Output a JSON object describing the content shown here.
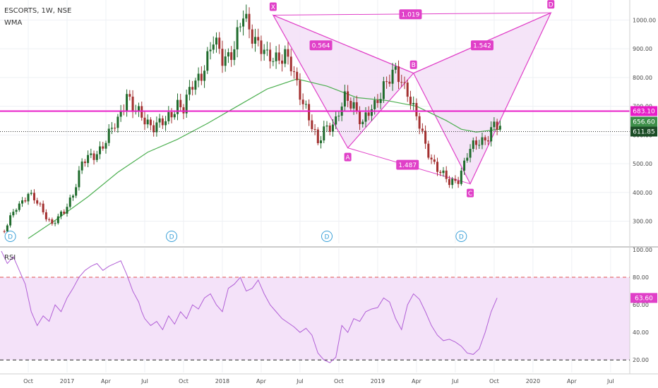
{
  "header": {
    "symbol_line": "ESCORTS, 1W, NSE",
    "indicator": "WMA"
  },
  "colors": {
    "bull": "#1f6b2c",
    "bear": "#a33030",
    "wma": "#4caf50",
    "pattern": "#e040c8",
    "pattern_fill": "#f3dff7",
    "rsi": "#b15fd6",
    "level": "#e81ec8",
    "price_tag": "#1b4d26",
    "wma_tag": "#3d8f49"
  },
  "time_axis": {
    "tick_labels": [
      "Oct",
      "2017",
      "Apr",
      "Jul",
      "Oct",
      "2018",
      "Apr",
      "Jul",
      "Oct",
      "2019",
      "Apr",
      "Jul",
      "Oct",
      "2020",
      "Apr",
      "Jul"
    ],
    "tick_weeks": [
      0,
      13,
      26,
      39,
      52,
      65,
      78,
      91,
      104,
      117,
      130,
      143,
      156,
      169,
      182,
      195
    ]
  },
  "chart_data": [
    {
      "type": "candlestick",
      "ylim": [
        235,
        1050
      ],
      "y_ticks": [
        300,
        400,
        500,
        600,
        700,
        800,
        900,
        1000
      ],
      "y_tick_labels": [
        "300.00",
        "400.00",
        "500.00",
        "600.00",
        "700.00",
        "800.00",
        "900.00",
        "1000.00"
      ],
      "close_path_weeks": [
        -8,
        -4,
        0,
        4,
        8,
        12,
        15,
        18,
        22,
        26,
        30,
        33,
        35,
        38,
        42,
        46,
        50,
        52,
        55,
        58,
        62,
        65,
        69,
        72,
        75,
        80,
        82,
        84,
        86,
        88,
        90,
        93,
        97,
        99,
        101,
        103,
        106,
        109,
        112,
        116,
        119,
        123,
        127,
        130,
        133,
        135,
        138,
        141,
        144,
        147,
        150,
        154,
        156,
        158
      ],
      "close_path_values": [
        265,
        350,
        395,
        350,
        290,
        330,
        400,
        500,
        530,
        580,
        650,
        750,
        690,
        660,
        635,
        640,
        715,
        690,
        770,
        820,
        920,
        870,
        900,
        1010,
        960,
        860,
        870,
        880,
        880,
        830,
        770,
        700,
        560,
        620,
        640,
        650,
        720,
        710,
        640,
        700,
        780,
        810,
        760,
        660,
        560,
        520,
        470,
        430,
        450,
        530,
        570,
        600,
        630,
        620
      ],
      "wma": {
        "weeks": [
          0,
          10,
          20,
          30,
          40,
          50,
          60,
          70,
          80,
          90,
          100,
          110,
          120,
          130,
          140,
          145,
          150,
          158
        ],
        "values": [
          240,
          310,
          385,
          470,
          540,
          585,
          640,
          700,
          760,
          795,
          770,
          730,
          720,
          700,
          650,
          620,
          610,
          620
        ],
        "tag_label": "656.60"
      },
      "last_price": 611.85,
      "last_price_label": "611.85",
      "level": 683.1,
      "level_label": "683.10",
      "dividend_label": "D",
      "dividend_weeks": [
        -6,
        48,
        100,
        145
      ],
      "harmonic_pattern": {
        "points": [
          {
            "label": "X",
            "week": 82,
            "value": 1017
          },
          {
            "label": "A",
            "week": 107,
            "value": 555
          },
          {
            "label": "B",
            "week": 129,
            "value": 815
          },
          {
            "label": "C",
            "week": 148,
            "value": 430
          },
          {
            "label": "D",
            "week": 175,
            "value": 1025
          }
        ],
        "ratios": [
          {
            "label": "0.564",
            "week": 98,
            "value": 912
          },
          {
            "label": "1.019",
            "week": 128,
            "value": 1020
          },
          {
            "label": "1.542",
            "week": 152,
            "value": 912
          },
          {
            "label": "1.487",
            "week": 127,
            "value": 496
          }
        ]
      }
    },
    {
      "type": "line",
      "name": "RSI",
      "ylim": [
        15,
        100
      ],
      "y_ticks": [
        20,
        40,
        60,
        80,
        100
      ],
      "y_tick_labels": [
        "20.00",
        "40.00",
        "60.00",
        "80.00",
        "100.00"
      ],
      "band": [
        20,
        80
      ],
      "weeks": [
        -9,
        -7,
        -5,
        -3,
        -1,
        1,
        3,
        5,
        7,
        9,
        11,
        13,
        15,
        17,
        19,
        21,
        23,
        25,
        27,
        29,
        31,
        33,
        35,
        37,
        38,
        39,
        41,
        43,
        45,
        47,
        49,
        51,
        53,
        55,
        57,
        59,
        61,
        63,
        65,
        67,
        69,
        71,
        73,
        75,
        77,
        79,
        81,
        83,
        85,
        87,
        89,
        91,
        93,
        95,
        97,
        99,
        101,
        103,
        105,
        107,
        109,
        111,
        113,
        115,
        117,
        119,
        121,
        123,
        125,
        127,
        129,
        131,
        133,
        135,
        137,
        139,
        141,
        143,
        145,
        147,
        149,
        151,
        153,
        155,
        157
      ],
      "values": [
        99,
        90,
        95,
        85,
        75,
        55,
        45,
        52,
        48,
        60,
        55,
        65,
        72,
        80,
        85,
        88,
        90,
        85,
        88,
        90,
        92,
        82,
        70,
        62,
        55,
        50,
        45,
        48,
        42,
        52,
        46,
        55,
        50,
        60,
        57,
        65,
        68,
        60,
        55,
        72,
        75,
        80,
        70,
        72,
        78,
        68,
        60,
        55,
        50,
        47,
        44,
        40,
        43,
        38,
        25,
        20,
        18,
        22,
        45,
        40,
        50,
        48,
        55,
        57,
        58,
        65,
        62,
        50,
        42,
        60,
        68,
        64,
        55,
        45,
        38,
        34,
        35,
        33,
        30,
        25,
        24,
        28,
        40,
        55,
        65
      ],
      "last_label": "63.60"
    }
  ]
}
